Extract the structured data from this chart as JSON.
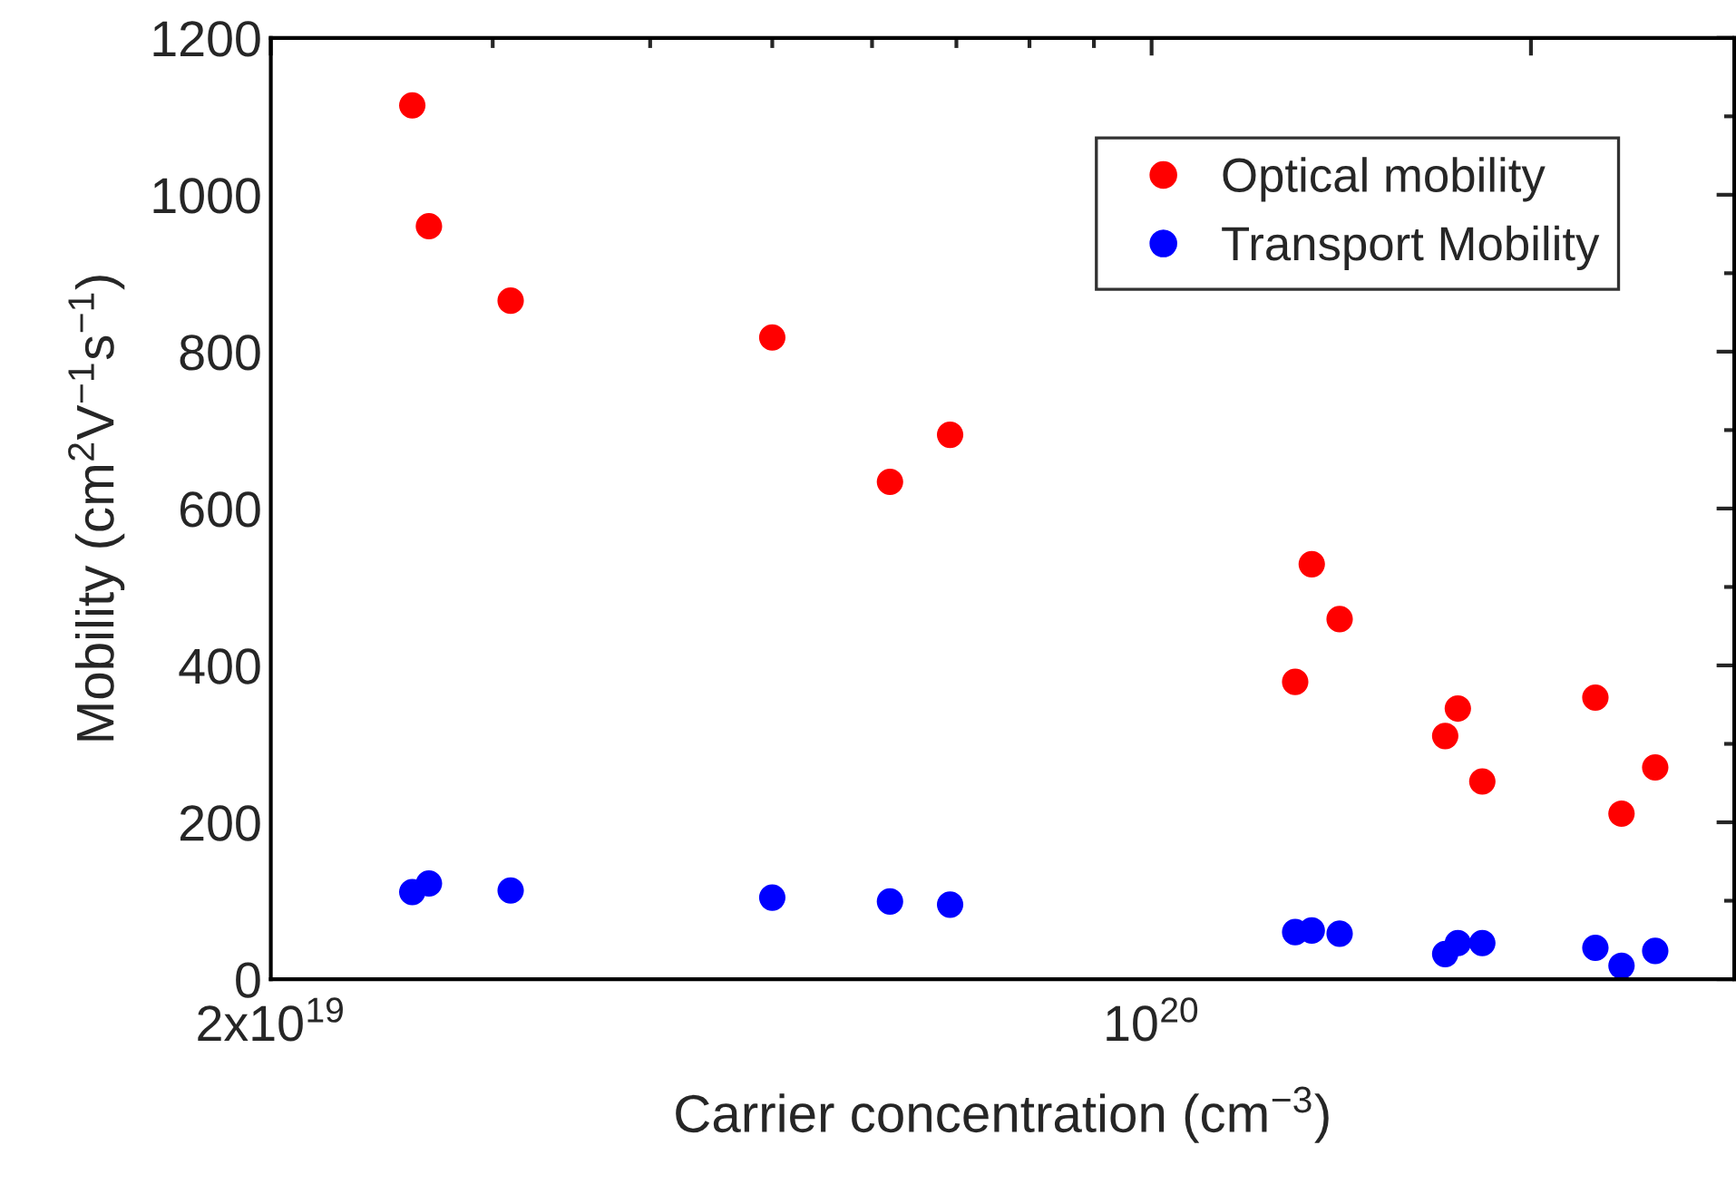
{
  "chart_data": {
    "type": "scatter",
    "xlabel": "Carrier concentration (cm$^{−3}$)",
    "ylabel": "Mobility (cm$^{2}$V$^{−1}$s$^{−1}$)",
    "series": [
      {
        "name": "Optical mobility",
        "color": "#ff0000",
        "x": [
          2.59e+19,
          2.67e+19,
          3.1e+19,
          5e+19,
          6.2e+19,
          6.92e+19,
          1.3e+20,
          1.34e+20,
          1.41e+20,
          1.71e+20,
          1.75e+20,
          1.83e+20,
          2.25e+20,
          2.36e+20,
          2.51e+20
        ],
        "values": [
          1114,
          960,
          865,
          818,
          634,
          694,
          379,
          529,
          459,
          310,
          345,
          252,
          359,
          211,
          270
        ]
      },
      {
        "name": "Transport Mobility",
        "color": "#0000ff",
        "x": [
          2.59e+19,
          2.67e+19,
          3.1e+19,
          5e+19,
          6.2e+19,
          6.92e+19,
          1.3e+20,
          1.34e+20,
          1.41e+20,
          1.71e+20,
          1.75e+20,
          1.83e+20,
          2.25e+20,
          2.36e+20,
          2.51e+20
        ],
        "values": [
          111,
          122,
          113,
          104,
          99,
          95,
          60,
          62,
          58,
          32,
          46,
          46,
          40,
          17,
          36
        ]
      }
    ],
    "log": "x",
    "xlim": [
      2e+19,
      2.9e+20
    ],
    "xticks": [
      {
        "value": 2e+19,
        "label": "2x10$^{19}$"
      },
      {
        "value": 1e+20,
        "label": "10$^{20}$"
      },
      {
        "value": 2e+20,
        "label": null
      }
    ],
    "ylim": [
      0,
      1200
    ],
    "yticks": [
      0,
      200,
      400,
      600,
      800,
      1000,
      1200
    ],
    "marker": "circle",
    "legend": "top right",
    "grid": false
  }
}
